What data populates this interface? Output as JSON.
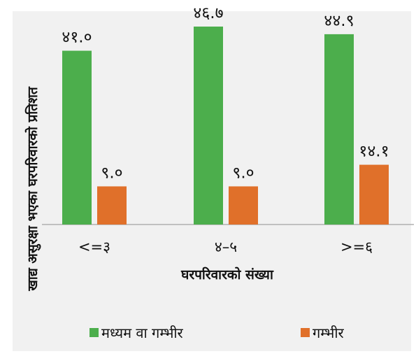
{
  "chart_data": {
    "type": "bar",
    "title": "",
    "xlabel": "घरपरिवारको संख्या",
    "ylabel": "खाद्य असुरक्षा भएका घरपरिवारको प्रतिशत",
    "categories": [
      "<=३",
      "४–५",
      ">=६"
    ],
    "series": [
      {
        "name": "मध्यम वा गम्भीर",
        "values": [
          41.0,
          46.7,
          44.9
        ],
        "labels": [
          "४१.०",
          "४६.७",
          "४४.९"
        ],
        "color": "#4cae4c"
      },
      {
        "name": "गम्भीर",
        "values": [
          9.0,
          9.0,
          14.1
        ],
        "labels": [
          "९.०",
          "९.०",
          "१४.१"
        ],
        "color": "#e0702a"
      }
    ],
    "ylim": [
      0,
      50
    ],
    "grid": false,
    "legend": "bottom"
  }
}
